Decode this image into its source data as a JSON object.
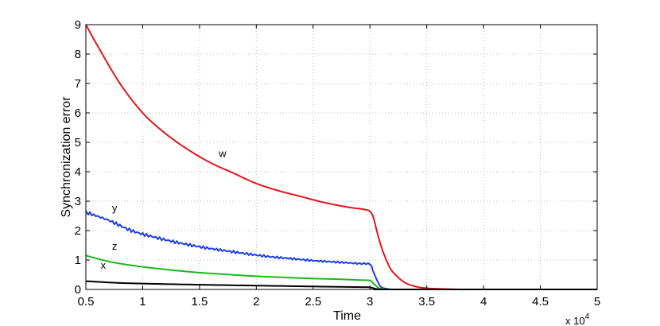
{
  "chart_data": {
    "type": "line",
    "title": "",
    "xlabel": "Time",
    "ylabel": "Synchronization error",
    "x_multiplier": "x 10",
    "x_multiplier_exp": "4",
    "xlim": [
      0.5,
      5
    ],
    "ylim": [
      0,
      9
    ],
    "grid": true,
    "xticks": [
      0.5,
      1,
      1.5,
      2,
      2.5,
      3,
      3.5,
      4,
      4.5,
      5
    ],
    "xtick_labels": [
      "0.5",
      "1",
      "1.5",
      "2",
      "2.5",
      "3",
      "3.5",
      "4",
      "4.5",
      "5"
    ],
    "yticks": [
      0,
      1,
      2,
      3,
      4,
      5,
      6,
      7,
      8,
      9
    ],
    "ytick_labels": [
      "0",
      "1",
      "2",
      "3",
      "4",
      "5",
      "6",
      "7",
      "8",
      "9"
    ],
    "series": [
      {
        "name": "w",
        "color": "#e8141c",
        "label": {
          "text": "w",
          "x": 1.67,
          "y": 4.5
        },
        "x": [
          0.5,
          0.6,
          0.8,
          1.0,
          1.2,
          1.4,
          1.6,
          1.8,
          2.0,
          2.2,
          2.4,
          2.6,
          2.8,
          2.95,
          3.0,
          3.03,
          3.06,
          3.1,
          3.15,
          3.2,
          3.3,
          3.4,
          3.5,
          3.6,
          3.7,
          3.8,
          4.0,
          4.5,
          5.0
        ],
        "y": [
          9.0,
          8.3,
          7.0,
          6.0,
          5.3,
          4.75,
          4.3,
          3.95,
          3.6,
          3.35,
          3.15,
          2.95,
          2.8,
          2.72,
          2.65,
          2.45,
          2.0,
          1.45,
          0.95,
          0.6,
          0.25,
          0.1,
          0.04,
          0.02,
          0.01,
          0.0,
          0.0,
          0.0,
          0.0
        ]
      },
      {
        "name": "y",
        "color": "#1f3fe0",
        "label": {
          "text": "y",
          "x": 0.73,
          "y": 2.65
        },
        "x": [
          0.5,
          0.7,
          0.9,
          1.1,
          1.3,
          1.5,
          1.7,
          1.9,
          2.1,
          2.3,
          2.5,
          2.7,
          2.9,
          3.0,
          3.03,
          3.07,
          3.1,
          3.15,
          3.2,
          3.3,
          5.0
        ],
        "y": [
          2.62,
          2.35,
          2.0,
          1.78,
          1.6,
          1.45,
          1.33,
          1.22,
          1.12,
          1.05,
          0.98,
          0.93,
          0.88,
          0.85,
          0.6,
          0.25,
          0.08,
          0.02,
          0.0,
          0.0,
          0.0
        ]
      },
      {
        "name": "z",
        "color": "#1cb81c",
        "label": {
          "text": "z",
          "x": 0.73,
          "y": 1.35
        },
        "x": [
          0.5,
          0.7,
          0.9,
          1.1,
          1.3,
          1.5,
          1.7,
          1.9,
          2.1,
          2.3,
          2.5,
          2.7,
          2.9,
          3.0,
          3.03,
          3.07,
          3.1,
          3.15,
          3.2,
          5.0
        ],
        "y": [
          1.15,
          0.95,
          0.82,
          0.72,
          0.64,
          0.57,
          0.52,
          0.47,
          0.43,
          0.4,
          0.37,
          0.35,
          0.32,
          0.3,
          0.2,
          0.07,
          0.02,
          0.0,
          0.0,
          0.0
        ]
      },
      {
        "name": "x",
        "color": "#000000",
        "label": {
          "text": "x",
          "x": 0.63,
          "y": 0.7
        },
        "x": [
          0.5,
          0.8,
          1.1,
          1.5,
          2.0,
          2.5,
          2.9,
          3.0,
          3.05,
          3.1,
          3.2,
          5.0
        ],
        "y": [
          0.28,
          0.22,
          0.19,
          0.16,
          0.13,
          0.1,
          0.08,
          0.07,
          0.02,
          0.0,
          0.0,
          0.0
        ]
      }
    ]
  }
}
